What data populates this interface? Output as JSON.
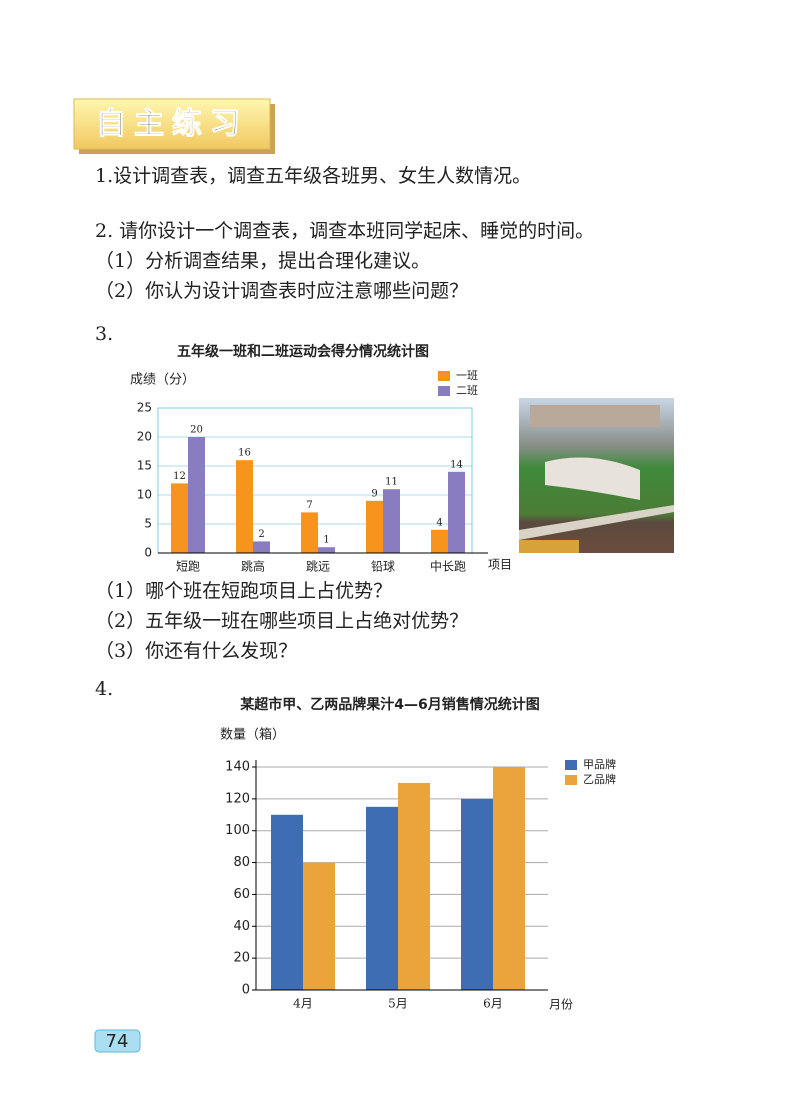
{
  "header": {
    "badge": "自主练习"
  },
  "exercises": [
    {
      "text": "1.设计调查表，调查五年级各班男、女生人数情况。"
    },
    {
      "text": "2. 请你设计一个调查表，调查本班同学起床、睡觉的时间。",
      "subs": [
        "（1）分析调查结果，提出合理化建议。",
        "（2）你认为设计调查表时应注意哪些问题？"
      ]
    },
    {
      "text": "3.",
      "subs": [
        "（1）哪个班在短跑项目上占优势？",
        "（2）五年级一班在哪些项目上占绝对优势？",
        "（3）你还有什么发现？"
      ]
    },
    {
      "text": "4."
    }
  ],
  "chart_data": [
    {
      "type": "bar",
      "title": "五年级一班和二班运动会得分情况统计图",
      "y_label": "成绩（分）",
      "x_label": "项目",
      "categories": [
        "短跑",
        "跳高",
        "跳远",
        "铅球",
        "中长跑"
      ],
      "series": [
        {
          "name": "一班",
          "color": "#f7941d",
          "values": [
            12,
            16,
            7,
            9,
            4
          ]
        },
        {
          "name": "二班",
          "color": "#8a7cc0",
          "values": [
            20,
            2,
            1,
            11,
            14
          ]
        }
      ],
      "ylim": [
        0,
        25
      ],
      "yticks": [
        0,
        5,
        10,
        15,
        20,
        25
      ],
      "grid": true,
      "data_labels": true,
      "legend": "upper right"
    },
    {
      "type": "bar",
      "title": "某超市甲、乙两品牌果汁4—6月销售情况统计图",
      "y_label": "数量（箱）",
      "x_label": "月份",
      "categories": [
        "4月",
        "5月",
        "6月"
      ],
      "series": [
        {
          "name": "甲品牌",
          "color": "#3e6db4",
          "values": [
            110,
            115,
            120
          ]
        },
        {
          "name": "乙品牌",
          "color": "#eba33b",
          "values": [
            80,
            130,
            140
          ]
        }
      ],
      "ylim": [
        0,
        140
      ],
      "yticks": [
        0,
        20,
        40,
        60,
        80,
        100,
        120,
        140
      ],
      "grid": true,
      "data_labels": false,
      "legend": "right"
    }
  ],
  "page_number": "74"
}
